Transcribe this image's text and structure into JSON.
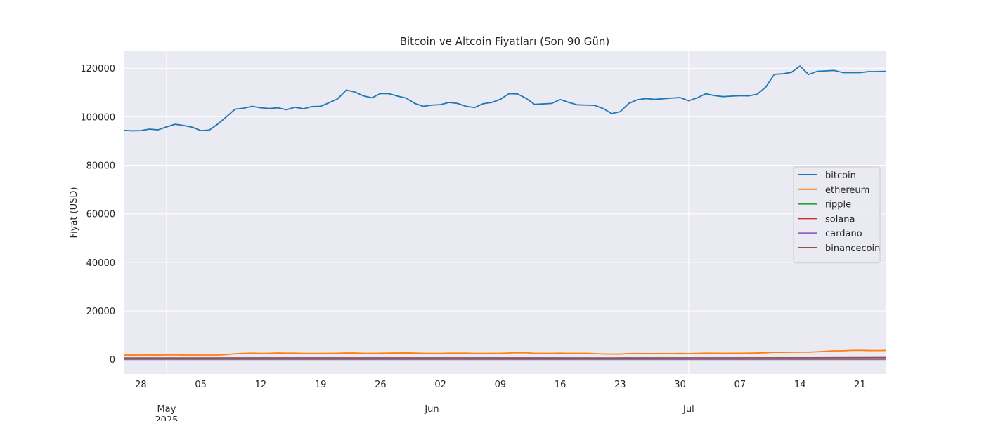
{
  "chart_data": {
    "type": "line",
    "title": "Bitcoin ve Altcoin Fiyatları (Son 90 Gün)",
    "xlabel": "",
    "ylabel": "Fiyat (USD)",
    "ylim": [
      -6000,
      127000
    ],
    "yticks": [
      0,
      20000,
      40000,
      60000,
      80000,
      100000,
      120000
    ],
    "x_start": "2025-04-26",
    "x_end": "2025-07-24",
    "x_minor_ticks": [
      {
        "date": "2025-04-28",
        "label": "28"
      },
      {
        "date": "2025-05-05",
        "label": "05"
      },
      {
        "date": "2025-05-12",
        "label": "12"
      },
      {
        "date": "2025-05-19",
        "label": "19"
      },
      {
        "date": "2025-05-26",
        "label": "26"
      },
      {
        "date": "2025-06-02",
        "label": "02"
      },
      {
        "date": "2025-06-09",
        "label": "09"
      },
      {
        "date": "2025-06-16",
        "label": "16"
      },
      {
        "date": "2025-06-23",
        "label": "23"
      },
      {
        "date": "2025-06-30",
        "label": "30"
      },
      {
        "date": "2025-07-07",
        "label": "07"
      },
      {
        "date": "2025-07-14",
        "label": "14"
      },
      {
        "date": "2025-07-21",
        "label": "21"
      }
    ],
    "x_major_ticks": [
      {
        "date": "2025-05-01",
        "label": "May",
        "sublabel": "2025"
      },
      {
        "date": "2025-06-01",
        "label": "Jun",
        "sublabel": ""
      },
      {
        "date": "2025-07-01",
        "label": "Jul",
        "sublabel": ""
      }
    ],
    "grid": true,
    "legend_position": "center-right",
    "series": [
      {
        "name": "bitcoin",
        "color": "#1f77b4",
        "values": [
          [
            94400,
            "2025-04-26"
          ],
          [
            94200,
            "2025-04-27"
          ],
          [
            94300,
            "2025-04-28"
          ],
          [
            94900,
            "2025-04-29"
          ],
          [
            94600,
            "2025-04-30"
          ],
          [
            95800,
            "2025-05-01"
          ],
          [
            96900,
            "2025-05-02"
          ],
          [
            96400,
            "2025-05-03"
          ],
          [
            95700,
            "2025-05-04"
          ],
          [
            94300,
            "2025-05-05"
          ],
          [
            94500,
            "2025-05-06"
          ],
          [
            97000,
            "2025-05-07"
          ],
          [
            100000,
            "2025-05-08"
          ],
          [
            103100,
            "2025-05-09"
          ],
          [
            103500,
            "2025-05-10"
          ],
          [
            104300,
            "2025-05-11"
          ],
          [
            103700,
            "2025-05-12"
          ],
          [
            103400,
            "2025-05-13"
          ],
          [
            103700,
            "2025-05-14"
          ],
          [
            102900,
            "2025-05-15"
          ],
          [
            103900,
            "2025-05-16"
          ],
          [
            103300,
            "2025-05-17"
          ],
          [
            104200,
            "2025-05-18"
          ],
          [
            104300,
            "2025-05-19"
          ],
          [
            105800,
            "2025-05-20"
          ],
          [
            107400,
            "2025-05-21"
          ],
          [
            111000,
            "2025-05-22"
          ],
          [
            110200,
            "2025-05-23"
          ],
          [
            108600,
            "2025-05-24"
          ],
          [
            107800,
            "2025-05-25"
          ],
          [
            109600,
            "2025-05-26"
          ],
          [
            109500,
            "2025-05-27"
          ],
          [
            108500,
            "2025-05-28"
          ],
          [
            107700,
            "2025-05-29"
          ],
          [
            105500,
            "2025-05-30"
          ],
          [
            104300,
            "2025-05-31"
          ],
          [
            104800,
            "2025-06-01"
          ],
          [
            105000,
            "2025-06-02"
          ],
          [
            105900,
            "2025-06-03"
          ],
          [
            105500,
            "2025-06-04"
          ],
          [
            104300,
            "2025-06-05"
          ],
          [
            103800,
            "2025-06-06"
          ],
          [
            105400,
            "2025-06-07"
          ],
          [
            105900,
            "2025-06-08"
          ],
          [
            107200,
            "2025-06-09"
          ],
          [
            109500,
            "2025-06-10"
          ],
          [
            109400,
            "2025-06-11"
          ],
          [
            107600,
            "2025-06-12"
          ],
          [
            105100,
            "2025-06-13"
          ],
          [
            105300,
            "2025-06-14"
          ],
          [
            105500,
            "2025-06-15"
          ],
          [
            107100,
            "2025-06-16"
          ],
          [
            105900,
            "2025-06-17"
          ],
          [
            104900,
            "2025-06-18"
          ],
          [
            104800,
            "2025-06-19"
          ],
          [
            104700,
            "2025-06-20"
          ],
          [
            103400,
            "2025-06-21"
          ],
          [
            101300,
            "2025-06-22"
          ],
          [
            102100,
            "2025-06-23"
          ],
          [
            105500,
            "2025-06-24"
          ],
          [
            107000,
            "2025-06-25"
          ],
          [
            107500,
            "2025-06-26"
          ],
          [
            107200,
            "2025-06-27"
          ],
          [
            107400,
            "2025-06-28"
          ],
          [
            107700,
            "2025-06-29"
          ],
          [
            107900,
            "2025-06-30"
          ],
          [
            106600,
            "2025-07-01"
          ],
          [
            107800,
            "2025-07-02"
          ],
          [
            109500,
            "2025-07-03"
          ],
          [
            108700,
            "2025-07-04"
          ],
          [
            108300,
            "2025-07-05"
          ],
          [
            108500,
            "2025-07-06"
          ],
          [
            108700,
            "2025-07-07"
          ],
          [
            108600,
            "2025-07-08"
          ],
          [
            109300,
            "2025-07-09"
          ],
          [
            112200,
            "2025-07-10"
          ],
          [
            117500,
            "2025-07-11"
          ],
          [
            117700,
            "2025-07-12"
          ],
          [
            118300,
            "2025-07-13"
          ],
          [
            120900,
            "2025-07-14"
          ],
          [
            117400,
            "2025-07-15"
          ],
          [
            118700,
            "2025-07-16"
          ],
          [
            118900,
            "2025-07-17"
          ],
          [
            119100,
            "2025-07-18"
          ],
          [
            118200,
            "2025-07-19"
          ],
          [
            118200,
            "2025-07-20"
          ],
          [
            118200,
            "2025-07-21"
          ],
          [
            118600,
            "2025-07-22"
          ],
          [
            118600,
            "2025-07-23"
          ],
          [
            118700,
            "2025-07-24"
          ],
          [
            116400,
            "2025-07-25"
          ]
        ]
      },
      {
        "name": "ethereum",
        "color": "#ff7f0e",
        "values": [
          [
            1800,
            "2025-04-26"
          ],
          [
            1790,
            "2025-04-27"
          ],
          [
            1800,
            "2025-04-28"
          ],
          [
            1820,
            "2025-04-29"
          ],
          [
            1790,
            "2025-04-30"
          ],
          [
            1840,
            "2025-05-01"
          ],
          [
            1840,
            "2025-05-02"
          ],
          [
            1830,
            "2025-05-03"
          ],
          [
            1810,
            "2025-05-04"
          ],
          [
            1810,
            "2025-05-05"
          ],
          [
            1800,
            "2025-05-06"
          ],
          [
            1820,
            "2025-05-07"
          ],
          [
            2000,
            "2025-05-08"
          ],
          [
            2350,
            "2025-05-09"
          ],
          [
            2500,
            "2025-05-10"
          ],
          [
            2580,
            "2025-05-11"
          ],
          [
            2500,
            "2025-05-12"
          ],
          [
            2520,
            "2025-05-13"
          ],
          [
            2680,
            "2025-05-14"
          ],
          [
            2610,
            "2025-05-15"
          ],
          [
            2590,
            "2025-05-16"
          ],
          [
            2480,
            "2025-05-17"
          ],
          [
            2470,
            "2025-05-18"
          ],
          [
            2470,
            "2025-05-19"
          ],
          [
            2530,
            "2025-05-20"
          ],
          [
            2550,
            "2025-05-21"
          ],
          [
            2660,
            "2025-05-22"
          ],
          [
            2650,
            "2025-05-23"
          ],
          [
            2530,
            "2025-05-24"
          ],
          [
            2520,
            "2025-05-25"
          ],
          [
            2560,
            "2025-05-26"
          ],
          [
            2620,
            "2025-05-27"
          ],
          [
            2650,
            "2025-05-28"
          ],
          [
            2690,
            "2025-05-29"
          ],
          [
            2620,
            "2025-05-30"
          ],
          [
            2530,
            "2025-05-31"
          ],
          [
            2500,
            "2025-06-01"
          ],
          [
            2500,
            "2025-06-02"
          ],
          [
            2600,
            "2025-06-03"
          ],
          [
            2610,
            "2025-06-04"
          ],
          [
            2580,
            "2025-06-05"
          ],
          [
            2480,
            "2025-06-06"
          ],
          [
            2480,
            "2025-06-07"
          ],
          [
            2510,
            "2025-06-08"
          ],
          [
            2510,
            "2025-06-09"
          ],
          [
            2680,
            "2025-06-10"
          ],
          [
            2800,
            "2025-06-11"
          ],
          [
            2770,
            "2025-06-12"
          ],
          [
            2530,
            "2025-06-13"
          ],
          [
            2520,
            "2025-06-14"
          ],
          [
            2530,
            "2025-06-15"
          ],
          [
            2580,
            "2025-06-16"
          ],
          [
            2530,
            "2025-06-17"
          ],
          [
            2510,
            "2025-06-18"
          ],
          [
            2510,
            "2025-06-19"
          ],
          [
            2420,
            "2025-06-20"
          ],
          [
            2250,
            "2025-06-21"
          ],
          [
            2230,
            "2025-06-22"
          ],
          [
            2230,
            "2025-06-23"
          ],
          [
            2410,
            "2025-06-24"
          ],
          [
            2440,
            "2025-06-25"
          ],
          [
            2430,
            "2025-06-26"
          ],
          [
            2420,
            "2025-06-27"
          ],
          [
            2440,
            "2025-06-28"
          ],
          [
            2430,
            "2025-06-29"
          ],
          [
            2490,
            "2025-06-30"
          ],
          [
            2420,
            "2025-07-01"
          ],
          [
            2480,
            "2025-07-02"
          ],
          [
            2590,
            "2025-07-03"
          ],
          [
            2540,
            "2025-07-04"
          ],
          [
            2510,
            "2025-07-05"
          ],
          [
            2540,
            "2025-07-06"
          ],
          [
            2560,
            "2025-07-07"
          ],
          [
            2580,
            "2025-07-08"
          ],
          [
            2660,
            "2025-07-09"
          ],
          [
            2770,
            "2025-07-10"
          ],
          [
            2960,
            "2025-07-11"
          ],
          [
            2940,
            "2025-07-12"
          ],
          [
            2960,
            "2025-07-13"
          ],
          [
            3000,
            "2025-07-14"
          ],
          [
            3000,
            "2025-07-15"
          ],
          [
            3150,
            "2025-07-16"
          ],
          [
            3370,
            "2025-07-17"
          ],
          [
            3550,
            "2025-07-18"
          ],
          [
            3560,
            "2025-07-19"
          ],
          [
            3720,
            "2025-07-20"
          ],
          [
            3760,
            "2025-07-21"
          ],
          [
            3670,
            "2025-07-22"
          ],
          [
            3640,
            "2025-07-23"
          ],
          [
            3700,
            "2025-07-24"
          ],
          [
            3730,
            "2025-07-25"
          ]
        ]
      },
      {
        "name": "ripple",
        "color": "#2ca02c",
        "values": [
          [
            2.2,
            "2025-04-26"
          ],
          [
            2.3,
            "2025-05-12"
          ],
          [
            2.2,
            "2025-06-01"
          ],
          [
            2.1,
            "2025-06-22"
          ],
          [
            2.3,
            "2025-07-01"
          ],
          [
            3.4,
            "2025-07-14"
          ],
          [
            3.2,
            "2025-07-25"
          ]
        ]
      },
      {
        "name": "solana",
        "color": "#d62728",
        "values": [
          [
            148,
            "2025-04-26"
          ],
          [
            172,
            "2025-05-12"
          ],
          [
            155,
            "2025-06-01"
          ],
          [
            135,
            "2025-06-22"
          ],
          [
            150,
            "2025-07-01"
          ],
          [
            165,
            "2025-07-14"
          ],
          [
            185,
            "2025-07-25"
          ]
        ]
      },
      {
        "name": "cardano",
        "color": "#9467bd",
        "values": [
          [
            0.7,
            "2025-04-26"
          ],
          [
            0.8,
            "2025-05-12"
          ],
          [
            0.7,
            "2025-06-01"
          ],
          [
            0.55,
            "2025-06-22"
          ],
          [
            0.6,
            "2025-07-01"
          ],
          [
            0.75,
            "2025-07-14"
          ],
          [
            0.8,
            "2025-07-25"
          ]
        ]
      },
      {
        "name": "binancecoin",
        "color": "#8c564b",
        "values": [
          [
            600,
            "2025-04-26"
          ],
          [
            650,
            "2025-05-12"
          ],
          [
            660,
            "2025-06-01"
          ],
          [
            620,
            "2025-06-22"
          ],
          [
            650,
            "2025-07-01"
          ],
          [
            690,
            "2025-07-14"
          ],
          [
            780,
            "2025-07-25"
          ]
        ]
      }
    ]
  }
}
